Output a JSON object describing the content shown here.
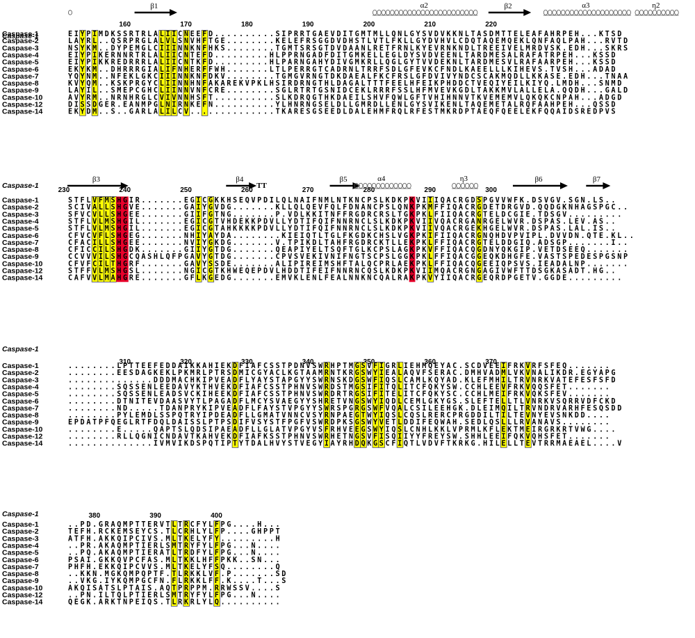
{
  "figure": {
    "reference_label": "Caspase-1",
    "colors": {
      "identical_bg": "#e8002a",
      "identical_fg": "#ffffff",
      "similar_bg": "#ffff00",
      "similar_fg": "#e8002a",
      "box": "#2a2a66"
    },
    "blocks": [
      {
        "start_residue": 151,
        "numbers": [
          160,
          170,
          180,
          190,
          200,
          210,
          220
        ],
        "ss": [
          {
            "type": "coil",
            "label": "",
            "start": 0,
            "end": 0
          },
          {
            "type": "arrow",
            "label": "β1",
            "start": 11,
            "end": 17
          },
          {
            "type": "helix",
            "label": "α2",
            "start": 50,
            "end": 66
          },
          {
            "type": "arrow",
            "label": "β2",
            "start": 69,
            "end": 75
          },
          {
            "type": "helix",
            "label": "α3",
            "start": 78,
            "end": 91
          },
          {
            "type": "helix",
            "label": "η2",
            "start": 93,
            "end": 99
          }
        ],
        "sequences": [
          {
            "name": "Caspase-1",
            "seq": "EIYPIMDKSSRTRLALIICNEEFD..........SIPRRTGAEVDITGMTMLLQNLGYSVDVKKNLTASDMTTELEAFAHRPEH...KTSD"
          },
          {
            "name": "Caspase-2",
            "seq": "LAYRL..QSRPRGLALVLSNVHFTGE........KELEFRSGGDVDHSTLVTLFKLLGYDVHVLCDQTAQEMQEKLQNFAQLPAH...RVTD"
          },
          {
            "name": "Caspase-3",
            "seq": "NSYKM..DYPEMGLCIIINNKNFHKS........TGMTSRSGTDVDAANLRETFRNLKYEVRNKNDLTREEIVELMRDVSK.EDH...SKRS"
          },
          {
            "name": "Caspase-4",
            "seq": "EIYPIKERNNRTRLALIICNTEFD.........HLPPRNGADFDITGMKELLEGLDYSVDVEENLTARDMESALRAFATRPEH...KSSD"
          },
          {
            "name": "Caspase-5",
            "seq": "EIYPIKKREDRRRLALIICNTKFD.........HLPARNGAHYDIVGMKRLLQGLGYTVVDEKNLTARDMESVLRAFAARPEH...KSSD"
          },
          {
            "name": "Caspase-6",
            "seq": "EKYKM..DHRRRGIALIFNHERFFWH.......LTLPERRGTCADRNLTRRFSDLGFEVKCFNDLKAEELLLKIHEVS.TVSH...ADAD"
          },
          {
            "name": "Caspase-7",
            "seq": "YQYNM..NFEKLGKCIIINNKNFDKV........TGMGVRNGTDKDAEALFKCFRSLGFDVIVYNDCSCAKMQDLLKKASE.EDH...TNAA"
          },
          {
            "name": "Caspase-8",
            "seq": "KVYQM..KSKPRGYCLIINNHNFAKAREKVPKLHSIRDRNGTHLDAGALTTTFEELHFEIKPHDDCTVEQIYEILKIYQ.LMDH...SNMD"
          },
          {
            "name": "Caspase-9",
            "seq": "LAYIL..SMEPCGHCLIINNVNFCRE........SGLRTRTGSNIDCEKLRRRFSSLHFMVEVKGDLTAKKMVLALLELA.QQDH...GALD"
          },
          {
            "name": "Caspase-10",
            "seq": "AVYRM..NRNHRGLCVIVNNHSFT..........SLKDRQGTHKDAEILSHVFQWLGFTVHIHNNVTKVEMEMVLQKQKCNPAH...ADGD"
          },
          {
            "name": "Caspase-12",
            "seq": "DISSDGER.EANMPGLNIRNKEFN..........YLHNRNGSELDLLGMRDLLENLGYSVIKENLTAQEMETALRQFAAHPEH...QSSD"
          },
          {
            "name": "Caspase-14",
            "seq": "EKYDM..S..GARLALILCV..............TKARESGSEEDLDALEHMFRQLRFESTMKRDPTAEQFQEELEKFQQAIDSREDPVS"
          }
        ]
      },
      {
        "start_residue": 231,
        "numbers": [
          230,
          240,
          250,
          260,
          270,
          280,
          290,
          300
        ],
        "ss": [
          {
            "type": "arrow",
            "label": "β3",
            "start": 0,
            "end": 9
          },
          {
            "type": "arrow",
            "label": "β4",
            "start": 26,
            "end": 30
          },
          {
            "type": "text",
            "label": "TT",
            "start": 31,
            "end": 33
          },
          {
            "type": "arrow",
            "label": "β5",
            "start": 43,
            "end": 47
          },
          {
            "type": "helix",
            "label": "α4",
            "start": 47,
            "end": 55
          },
          {
            "type": "helix",
            "label": "η3",
            "start": 63,
            "end": 66
          },
          {
            "type": "arrow",
            "label": "β6",
            "start": 73,
            "end": 81
          },
          {
            "type": "arrow",
            "label": "β7",
            "start": 85,
            "end": 88
          }
        ],
        "sequences": [
          {
            "name": "Caspase-1",
            "seq": "STFLVFMSHGIR.......EGICGKKHSEQVPDILQLNAIFNMLNTKNCPSLKDKPKVIIIQACRGDSPGVVWFK.DSVGV.SGN.LS.."
          },
          {
            "name": "Caspase-2",
            "seq": "SCIVALLSHGVE.......GAIYGVDG.......KLLQLQEVFQLFDNANCPSLQNKPKMFFIQACRGDETDRGVD.QQDGKNHAGSPGC.."
          },
          {
            "name": "Caspase-3",
            "seq": "SFVCVLLSHGEE.......GIIFGTNG.......P.VDLKKITNFFRGDRCRSLTGKPKLFIIQACRGTELDCGIE.TDSGV........."
          },
          {
            "name": "Caspase-4",
            "seq": "STFLVLMSHGIL.......EGICGTVHDEKKPDVLLYDTIFQIFNNRNCLSLKDKPKVIIVQACRGANRGELWVR.DSPAS.LEV.AS.."
          },
          {
            "name": "Caspase-5",
            "seq": "STFLVLMSHGIL.......EGICGTAHKKKKPDVLLYDTIFQIFNNRNCLSLKDKPKVIIVQACRGEKHGELWVR.DSPAS.LAL.IS.."
          },
          {
            "name": "Caspase-6",
            "seq": "CFVCVFLSHGEG.......NHIYAYDA........KIEIQTLTGLFKGDKCHSLVGKPKIFIIQACRGNQHDVPVIPL.DVVDN.QTE.KL.."
          },
          {
            "name": "Caspase-7",
            "seq": "CFACILLSHGEE.......NVIYGKDG.......V.TPIKDLTAHFRGDRCKTLLEKPKLFFIQACRGTELDDGIQ.ADSGP.......I.."
          },
          {
            "name": "Caspase-8",
            "seq": "CFICCILSHGDK.......GIIYGTDG.......QEAPIYELTSQFTGLKCPSLAGKPKVFFIQACQGDNYQKGIP.VETDSEEQ......."
          },
          {
            "name": "Caspase-9",
            "seq": "CCVVVILSHGCQASHLQFPGAVYGTDG.......CPVSVEKIVNIFNGTSCPSLGGKPKLFFIQACGGEQKDHGFE.VASTSPEDESPGSNP"
          },
          {
            "name": "Caspase-10",
            "seq": "CFVFCILTHGRF.......GAVYSSDE.......ALIPIREIMSHFTALQCPRLAEKPKLFFIQACQGEEIQPSVS.IEADALNP......."
          },
          {
            "name": "Caspase-12",
            "seq": "STFFVLMSHGSL.......NGICGTKHWEQEPDVLHDDTIFEIFNNRNCQSLKDKPKVIIMQACRGNGAGIVWFTTDSGKASADT.HG.."
          },
          {
            "name": "Caspase-14",
            "seq": "CAFVVLMAHGRE.......GFLKGEDG.......EMVKLENLFEALNNKNCQALRAKPKVYIIQACRGEQRDPGETV.GGDE........."
          }
        ]
      },
      {
        "start_residue": 301,
        "numbers": [
          310,
          320,
          330,
          340,
          350,
          360,
          370
        ],
        "ss": [],
        "sequences": [
          {
            "name": "Caspase-1",
            "seq": "........LPTTEEFEDDAIKKAHIEKDFIAFCSSTPDNVSWRHPTMGSVFIGRLIEHMQEYAC.SCDVEEIFRKVRFSFEQ......."
          },
          {
            "name": "Caspase-2",
            "seq": "........EESDAGKEKLPKMRLPTRSDMICGYACLKGTAAMRNTKRGSWYIEALAQVFSERAC.DMHVADMLVKVNALIKDR.EGYAPG"
          },
          {
            "name": "Caspase-3",
            "seq": "..............DDDMACHKIPVEADFLYAYSTAPGYYSWRNSKDGSWFIQSLCAMLKQYAD.KLEFMHILTRVNRKVATEFESFSFD"
          },
          {
            "name": "Caspase-4",
            "seq": "........SQSSENLEEDAVYKTHVEKDFIAFCSSTPHNVSWRDSTMGSIFITQLITCFQKYSW.CCHLEEVFRKVQQSFET......."
          },
          {
            "name": "Caspase-5",
            "seq": "........SQSSENLEADSVCKIHEEKDFIAFCSSTPHNVSWRDRTRGSIFITELITCFQKYSC.CCHLMEIFRKVQKSFEV......."
          },
          {
            "name": "Caspase-6",
            "seq": "........DTNITEVDAASVYTLPAGADFLMCYSVAEGYYSHRETVNGSWYIQDLCEMLGKYGS.SLEFTELLTLVNRKVSQRRVDFCKD"
          },
          {
            "name": "Caspase-7",
            "seq": "........ND.....TDANPRYKIPVEADFLFAYSTVPGYYSWRSPGRGSWFVQALCSILEEHGK.DLEIMQILTRVNDRVARHFESQSDD"
          },
          {
            "name": "Caspase-8",
            "seq": "........PYLEMDLSSPQTRYIPDEADFLLGMATVNNCVSYRNPAEGTWYIQSLCQSLRERCPRGDDILTILTEVNYEVSNKDD...."
          },
          {
            "name": "Caspase-9",
            "seq": "EPDATPFQEGLRTFDQLDAISSLPTPSDIFVSYSTFPGFVSWRDPKSGSWYVETLDDIFEQWAH.SEDLQSLLLRVANAVS........"
          },
          {
            "name": "Caspase-10",
            "seq": "........E.....QAPTSLQDSIPAEADFLLGLATVPGYVSFRHVEEGSWYIQSLCNHLKKLVPRMLKFLEKTMEIRGRKRTVWG...."
          },
          {
            "name": "Caspase-12",
            "seq": "........RLLQGNICNDAVTKAHVEKDFIAFKSSTPHNVSWRHETNGSVFISQIIYYFREYSW.SHHLEEIFQKVQHSFET......."
          },
          {
            "name": "Caspase-14",
            "seq": "..............IVMVIKDSPQTIPTYTDALHVYSTVEGYIAYRHDQKGSCFIQTLVDVFTKRKG.HILELLTEVTRRMAEAEL....V"
          }
        ]
      },
      {
        "start_residue": 376,
        "numbers": [
          380,
          390,
          400
        ],
        "ss": [],
        "sequences": [
          {
            "name": "Caspase-1",
            "seq": "..PD.GRAQMPTTERVTLTRCFYLFPG....H..."
          },
          {
            "name": "Caspase-2",
            "seq": "TEFH.RCKEMSEYCS.TLCRHLYLFP....GHPPT"
          },
          {
            "name": "Caspase-3",
            "seq": "ATFH.AKKQIPCIVS.MLTKELYFY.........H"
          },
          {
            "name": "Caspase-4",
            "seq": "..PR.AKAQMPTIERLSMTRYFYLFPG...N...."
          },
          {
            "name": "Caspase-5",
            "seq": "..PQ.AKAQMPTIERATLTRDFYLFPG...N...."
          },
          {
            "name": "Caspase-6",
            "seq": "PSAI.GKKQVPCFAS.MLTKKLHFFPKK..SN..."
          },
          {
            "name": "Caspase-7",
            "seq": "PHFH.EKKQIPCVVS.MLTKELYFSQ........Q"
          },
          {
            "name": "Caspase-8",
            "seq": "..KKN.MGKQMPQPTF.TLRKKLVF.P.......SD"
          },
          {
            "name": "Caspase-9",
            "seq": "..VKG.IYKQMPGCFN.FLRKKLFF.K....T...S"
          },
          {
            "name": "Caspase-10",
            "seq": "AKQISATSLPTAIS.AQTPRPPM.RRWSSV....S"
          },
          {
            "name": "Caspase-12",
            "seq": "..PN.ILTQLPTIERLSMTRYFYLFPG...N...."
          },
          {
            "name": "Caspase-14",
            "seq": "QEGK.ARKTNPEIQS.TLRKRLYLQ.........."
          }
        ]
      }
    ]
  }
}
